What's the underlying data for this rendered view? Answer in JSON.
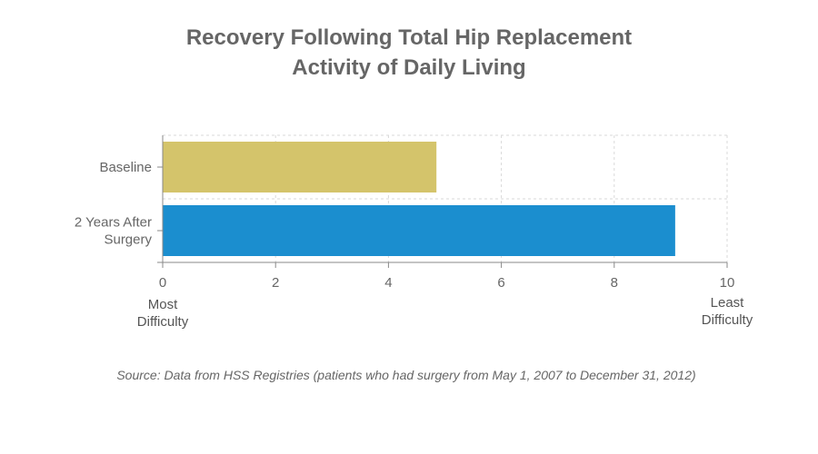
{
  "title_line1": "Recovery Following Total Hip Replacement",
  "title_line2": "Activity of Daily Living",
  "x_end_labels": {
    "left": "Most\nDifficulty",
    "right": "Least\nDifficulty"
  },
  "source": "Source: Data from HSS Registries (patients who had surgery from May 1, 2007 to December 31, 2012)",
  "colors": {
    "baseline": "#d4c46b",
    "after": "#1b8ecf",
    "grid": "#d9d9d9",
    "axis": "#888888",
    "text": "#666666"
  },
  "chart_data": {
    "type": "bar",
    "orientation": "horizontal",
    "title": "Recovery Following Total Hip Replacement\nActivity of Daily Living",
    "categories": [
      "Baseline",
      "2 Years After Surgery"
    ],
    "category_labels": [
      [
        "Baseline"
      ],
      [
        "2 Years After",
        "Surgery"
      ]
    ],
    "values": [
      4.85,
      9.08
    ],
    "xlim": [
      0,
      10
    ],
    "xticks": [
      0,
      2,
      4,
      6,
      8,
      10
    ],
    "grid": true,
    "legend": "none"
  }
}
